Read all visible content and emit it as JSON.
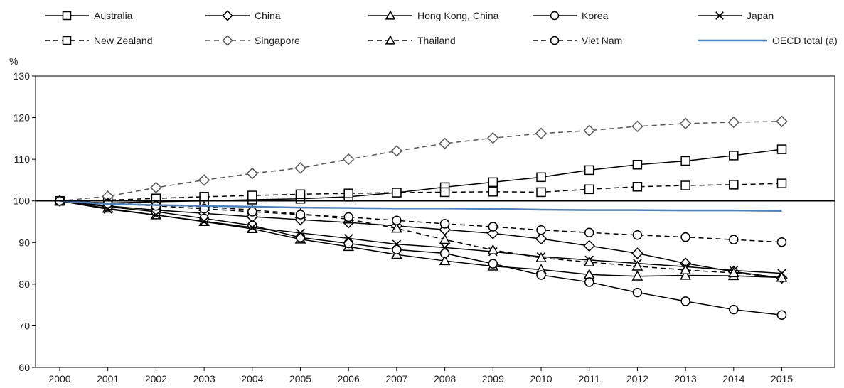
{
  "chart_data": {
    "type": "line",
    "title": "",
    "xlabel": "",
    "ylabel": "%",
    "ylim": [
      60,
      130
    ],
    "yticks": [
      60,
      70,
      80,
      90,
      100,
      110,
      120,
      130
    ],
    "x": [
      "2000",
      "2001",
      "2002",
      "2003",
      "2004",
      "2005",
      "2006",
      "2007",
      "2008",
      "2009",
      "2010",
      "2011",
      "2012",
      "2013",
      "2014",
      "2015"
    ],
    "legend_position": "top",
    "reference_line": 100,
    "series": [
      {
        "name": "Australia",
        "line": "solid",
        "marker": "square",
        "color": "#000000",
        "values": [
          100,
          99.5,
          99.8,
          100,
          100.3,
          100.5,
          101,
          102,
          103.3,
          104.5,
          105.7,
          107.4,
          108.7,
          109.6,
          110.9,
          112.4
        ]
      },
      {
        "name": "China",
        "line": "solid",
        "marker": "diamond",
        "color": "#000000",
        "values": [
          100,
          98.8,
          97.8,
          97,
          96.2,
          95.5,
          94.8,
          94,
          93.1,
          92.2,
          90.9,
          89.2,
          87.4,
          85,
          83,
          81.5
        ]
      },
      {
        "name": "Hong Kong, China",
        "line": "solid",
        "marker": "triangle",
        "color": "#000000",
        "values": [
          100,
          98.2,
          96.6,
          95,
          93.3,
          90.8,
          89,
          87.1,
          85.6,
          84.3,
          83.5,
          82.3,
          81.9,
          82.1,
          82,
          81.6
        ]
      },
      {
        "name": "Korea",
        "line": "solid",
        "marker": "circle",
        "color": "#000000",
        "values": [
          100,
          98.6,
          97.4,
          95.8,
          94.1,
          91.2,
          89.8,
          88.3,
          87.4,
          84.9,
          82.2,
          80.5,
          78,
          75.9,
          73.9,
          72.6
        ]
      },
      {
        "name": "Japan",
        "line": "solid",
        "marker": "cross",
        "color": "#000000",
        "values": [
          100,
          98,
          96.6,
          95.1,
          93.6,
          92.3,
          91,
          89.6,
          88.8,
          87.8,
          86.6,
          85.8,
          85,
          84.2,
          83.3,
          82.6
        ]
      },
      {
        "name": "New Zealand",
        "line": "dashed",
        "marker": "square",
        "color": "#000000",
        "values": [
          100,
          100.2,
          100.6,
          101,
          101.3,
          101.6,
          101.8,
          102,
          102.1,
          102.2,
          102.1,
          102.8,
          103.4,
          103.7,
          103.9,
          104.2
        ]
      },
      {
        "name": "Singapore",
        "line": "dashed",
        "marker": "diamond",
        "color": "#595959",
        "values": [
          100,
          101.1,
          103.2,
          105,
          106.6,
          107.9,
          110,
          112,
          113.8,
          115.1,
          116.2,
          116.9,
          117.9,
          118.6,
          118.9,
          119.1
        ]
      },
      {
        "name": "Thailand",
        "line": "dashed",
        "marker": "triangle",
        "color": "#000000",
        "values": [
          100,
          99.5,
          99,
          98.6,
          97.8,
          96.9,
          95.6,
          93.4,
          90.7,
          88.2,
          86.3,
          85.3,
          84.3,
          83.4,
          82.7,
          81.6
        ]
      },
      {
        "name": "Viet Nam",
        "line": "dashed",
        "marker": "circle",
        "color": "#000000",
        "values": [
          100,
          99.4,
          98.8,
          98.1,
          97.4,
          96.7,
          96.1,
          95.3,
          94.5,
          93.8,
          93,
          92.4,
          91.8,
          91.3,
          90.7,
          90.1
        ]
      },
      {
        "name": "OECD total (a)",
        "line": "solid",
        "marker": "none",
        "color": "#4f81bd",
        "values": [
          100,
          99.3,
          99,
          98.8,
          98.6,
          98.4,
          98.3,
          98.2,
          98.2,
          98.1,
          97.9,
          97.8,
          97.8,
          97.7,
          97.7,
          97.6
        ]
      }
    ]
  }
}
